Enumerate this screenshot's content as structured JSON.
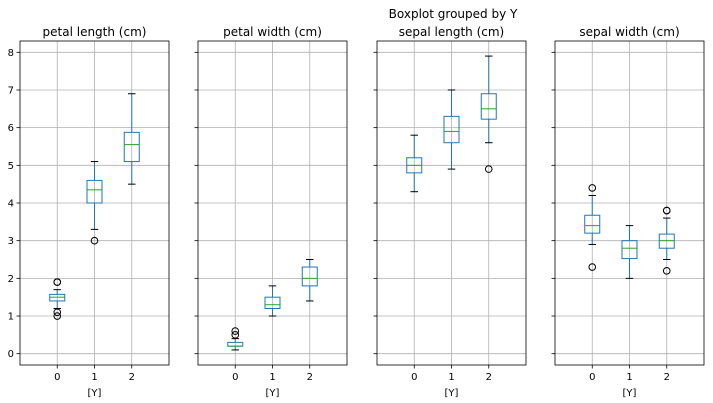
{
  "figure": {
    "suptitle": "Boxplot grouped by Y"
  },
  "style": {
    "box_color": "#1f77b4",
    "median_color": "#2ca02c",
    "whisker_color": "#1f77b4",
    "flier_color": "#000000",
    "grid_color": "#b0b0b0",
    "axis_color": "#000000"
  },
  "chart_data": [
    {
      "type": "boxplot",
      "title": "petal length (cm)",
      "xlabel": "[Y]",
      "categories": [
        "0",
        "1",
        "2"
      ],
      "ylim": [
        -0.3,
        8.3
      ],
      "yticks": [
        0,
        1,
        2,
        3,
        4,
        5,
        6,
        7,
        8
      ],
      "grid": true,
      "boxes": [
        {
          "whislo": 1.2,
          "q1": 1.4,
          "med": 1.5,
          "q3": 1.575,
          "whishi": 1.7,
          "fliers": [
            1.0,
            1.1,
            1.9,
            1.9
          ]
        },
        {
          "whislo": 3.3,
          "q1": 4.0,
          "med": 4.35,
          "q3": 4.6,
          "whishi": 5.1,
          "fliers": [
            3.0
          ]
        },
        {
          "whislo": 4.5,
          "q1": 5.1,
          "med": 5.55,
          "q3": 5.875,
          "whishi": 6.9,
          "fliers": []
        }
      ]
    },
    {
      "type": "boxplot",
      "title": "petal width (cm)",
      "xlabel": "[Y]",
      "categories": [
        "0",
        "1",
        "2"
      ],
      "ylim": [
        -0.3,
        8.3
      ],
      "yticks": [
        0,
        1,
        2,
        3,
        4,
        5,
        6,
        7,
        8
      ],
      "grid": true,
      "boxes": [
        {
          "whislo": 0.1,
          "q1": 0.2,
          "med": 0.2,
          "q3": 0.3,
          "whishi": 0.4,
          "fliers": [
            0.5,
            0.6
          ]
        },
        {
          "whislo": 1.0,
          "q1": 1.2,
          "med": 1.3,
          "q3": 1.5,
          "whishi": 1.8,
          "fliers": []
        },
        {
          "whislo": 1.4,
          "q1": 1.8,
          "med": 2.0,
          "q3": 2.3,
          "whishi": 2.5,
          "fliers": []
        }
      ]
    },
    {
      "type": "boxplot",
      "title": "sepal length (cm)",
      "xlabel": "[Y]",
      "categories": [
        "0",
        "1",
        "2"
      ],
      "ylim": [
        -0.3,
        8.3
      ],
      "yticks": [
        0,
        1,
        2,
        3,
        4,
        5,
        6,
        7,
        8
      ],
      "grid": true,
      "boxes": [
        {
          "whislo": 4.3,
          "q1": 4.8,
          "med": 5.0,
          "q3": 5.2,
          "whishi": 5.8,
          "fliers": []
        },
        {
          "whislo": 4.9,
          "q1": 5.6,
          "med": 5.9,
          "q3": 6.3,
          "whishi": 7.0,
          "fliers": []
        },
        {
          "whislo": 5.6,
          "q1": 6.225,
          "med": 6.5,
          "q3": 6.9,
          "whishi": 7.9,
          "fliers": [
            4.9
          ]
        }
      ]
    },
    {
      "type": "boxplot",
      "title": "sepal width (cm)",
      "xlabel": "[Y]",
      "categories": [
        "0",
        "1",
        "2"
      ],
      "ylim": [
        -0.3,
        8.3
      ],
      "yticks": [
        0,
        1,
        2,
        3,
        4,
        5,
        6,
        7,
        8
      ],
      "grid": true,
      "boxes": [
        {
          "whislo": 2.9,
          "q1": 3.2,
          "med": 3.4,
          "q3": 3.675,
          "whishi": 4.2,
          "fliers": [
            2.3,
            4.4
          ]
        },
        {
          "whislo": 2.0,
          "q1": 2.525,
          "med": 2.8,
          "q3": 3.0,
          "whishi": 3.4,
          "fliers": []
        },
        {
          "whislo": 2.5,
          "q1": 2.8,
          "med": 3.0,
          "q3": 3.175,
          "whishi": 3.6,
          "fliers": [
            2.2,
            3.8,
            3.8
          ]
        }
      ]
    }
  ]
}
